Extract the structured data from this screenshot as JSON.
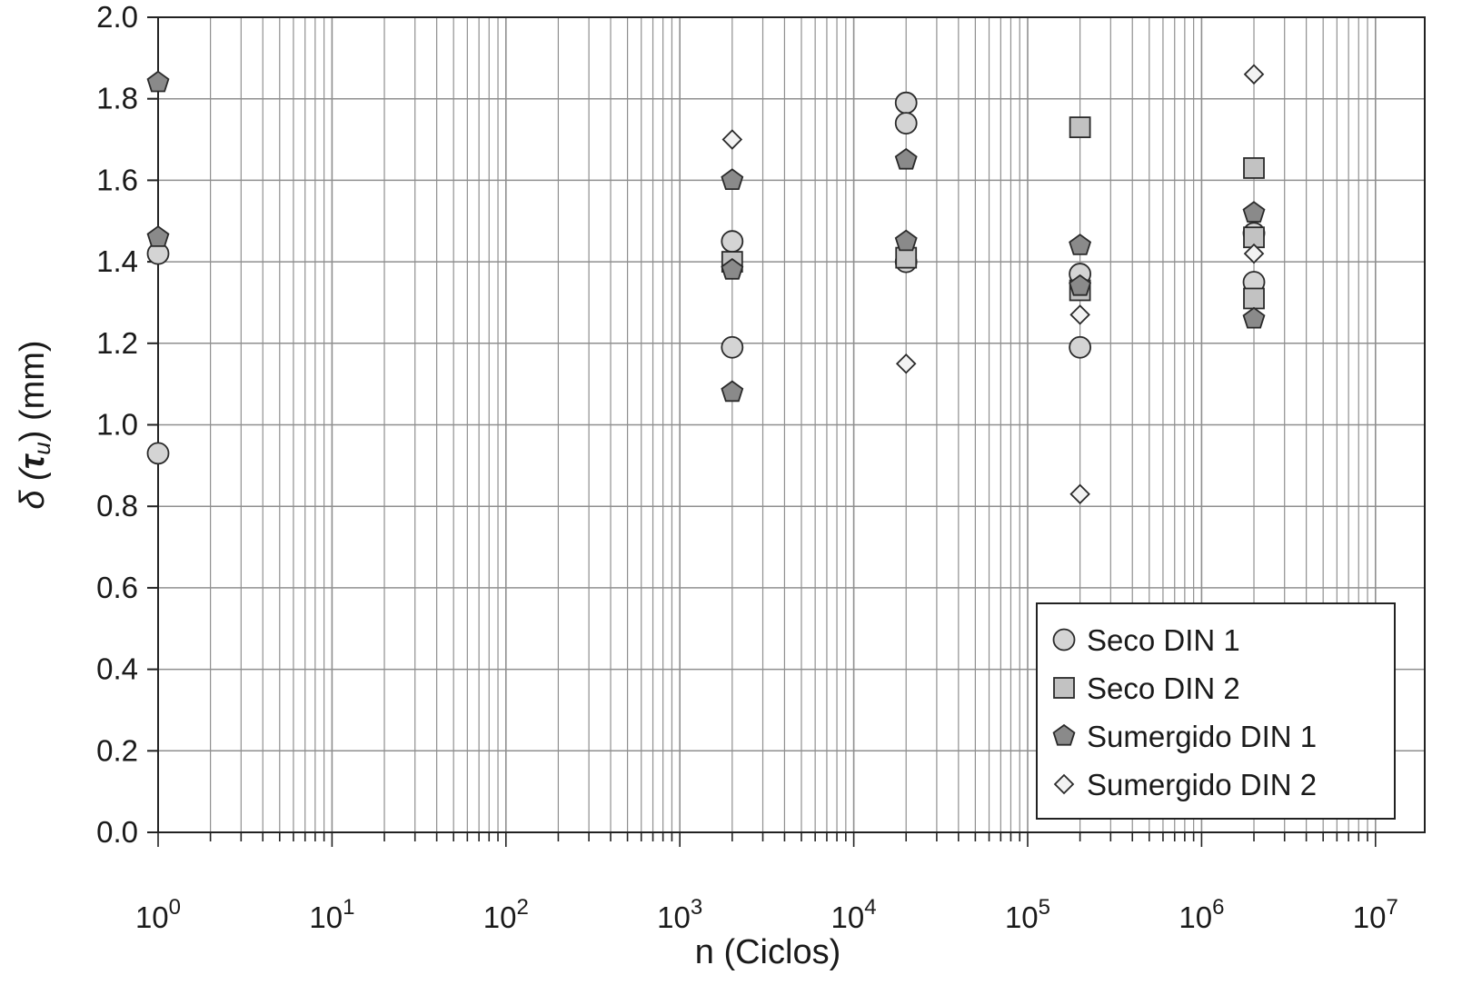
{
  "chart_data": {
    "type": "scatter",
    "xscale": "log",
    "xlim": [
      1,
      10000000
    ],
    "ylim": [
      0.0,
      2.0
    ],
    "xlabel": "n (Ciclos)",
    "ylabel": {
      "prefix": "δ (",
      "symbol": "τ",
      "subscript": "u",
      "suffix": ") (mm)"
    },
    "x_ticks": [
      {
        "base": "10",
        "exp": "0"
      },
      {
        "base": "10",
        "exp": "1"
      },
      {
        "base": "10",
        "exp": "2"
      },
      {
        "base": "10",
        "exp": "3"
      },
      {
        "base": "10",
        "exp": "4"
      },
      {
        "base": "10",
        "exp": "5"
      },
      {
        "base": "10",
        "exp": "6"
      },
      {
        "base": "10",
        "exp": "7"
      }
    ],
    "y_ticks": [
      "0.0",
      "0.2",
      "0.4",
      "0.6",
      "0.8",
      "1.0",
      "1.2",
      "1.4",
      "1.6",
      "1.8",
      "2.0"
    ],
    "grid": true,
    "legend_position": "bottom-right",
    "series": [
      {
        "name": "Seco DIN 1",
        "marker": "circle",
        "color": "#d4d4d4",
        "points": [
          {
            "x": 1,
            "y": 1.42
          },
          {
            "x": 1,
            "y": 0.93
          },
          {
            "x": 2000,
            "y": 1.45
          },
          {
            "x": 2000,
            "y": 1.19
          },
          {
            "x": 20000,
            "y": 1.79
          },
          {
            "x": 20000,
            "y": 1.74
          },
          {
            "x": 20000,
            "y": 1.4
          },
          {
            "x": 200000,
            "y": 1.37
          },
          {
            "x": 200000,
            "y": 1.19
          },
          {
            "x": 2000000,
            "y": 1.47
          },
          {
            "x": 2000000,
            "y": 1.35
          }
        ]
      },
      {
        "name": "Seco DIN 2",
        "marker": "square",
        "color": "#c2c2c2",
        "points": [
          {
            "x": 2000,
            "y": 1.4
          },
          {
            "x": 20000,
            "y": 1.41
          },
          {
            "x": 200000,
            "y": 1.73
          },
          {
            "x": 200000,
            "y": 1.33
          },
          {
            "x": 2000000,
            "y": 1.63
          },
          {
            "x": 2000000,
            "y": 1.46
          },
          {
            "x": 2000000,
            "y": 1.31
          }
        ]
      },
      {
        "name": "Sumergido DIN 1",
        "marker": "pentagon",
        "color": "#8a8a8a",
        "points": [
          {
            "x": 1,
            "y": 1.84
          },
          {
            "x": 1,
            "y": 1.46
          },
          {
            "x": 2000,
            "y": 1.6
          },
          {
            "x": 2000,
            "y": 1.38
          },
          {
            "x": 2000,
            "y": 1.08
          },
          {
            "x": 20000,
            "y": 1.65
          },
          {
            "x": 20000,
            "y": 1.45
          },
          {
            "x": 200000,
            "y": 1.44
          },
          {
            "x": 200000,
            "y": 1.34
          },
          {
            "x": 2000000,
            "y": 1.52
          },
          {
            "x": 2000000,
            "y": 1.26
          }
        ]
      },
      {
        "name": "Sumergido DIN 2",
        "marker": "diamond",
        "color": "#f2f2f2",
        "points": [
          {
            "x": 2000,
            "y": 1.7
          },
          {
            "x": 20000,
            "y": 1.15
          },
          {
            "x": 200000,
            "y": 1.27
          },
          {
            "x": 200000,
            "y": 0.83
          },
          {
            "x": 2000000,
            "y": 1.86
          },
          {
            "x": 2000000,
            "y": 1.42
          }
        ]
      }
    ]
  }
}
